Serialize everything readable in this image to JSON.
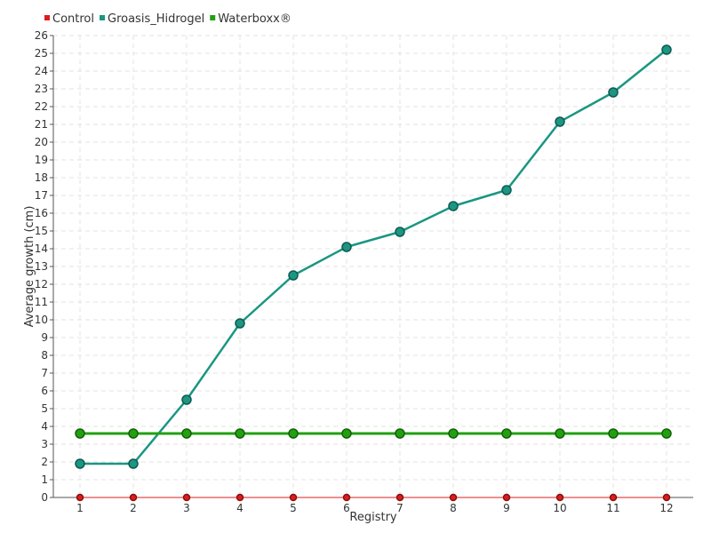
{
  "chart_data": {
    "type": "line",
    "title": "",
    "xlabel": "Registry",
    "ylabel": "Average growth (cm)",
    "categories": [
      "1",
      "2",
      "3",
      "4",
      "5",
      "6",
      "7",
      "8",
      "9",
      "10",
      "11",
      "12"
    ],
    "ylim": [
      0,
      26
    ],
    "yticks": [
      0,
      1,
      2,
      3,
      4,
      5,
      6,
      7,
      8,
      9,
      10,
      11,
      12,
      13,
      14,
      15,
      16,
      17,
      18,
      19,
      20,
      21,
      22,
      23,
      24,
      25,
      26
    ],
    "grid": true,
    "legend_position": "top-left",
    "series": [
      {
        "name": "Control",
        "color": "#dd1c1c",
        "values": [
          0,
          0,
          0,
          0,
          0,
          0,
          0,
          0,
          0,
          0,
          0,
          0
        ]
      },
      {
        "name": "Groasis_Hidrogel",
        "color": "#1a9683",
        "values": [
          1.9,
          1.9,
          5.5,
          9.8,
          12.5,
          14.1,
          14.95,
          16.4,
          17.3,
          21.15,
          22.8,
          25.2
        ]
      },
      {
        "name": "Waterboxx®",
        "color": "#22a010",
        "values": [
          3.6,
          3.6,
          3.6,
          3.6,
          3.6,
          3.6,
          3.6,
          3.6,
          3.6,
          3.6,
          3.6,
          3.6
        ]
      }
    ]
  }
}
